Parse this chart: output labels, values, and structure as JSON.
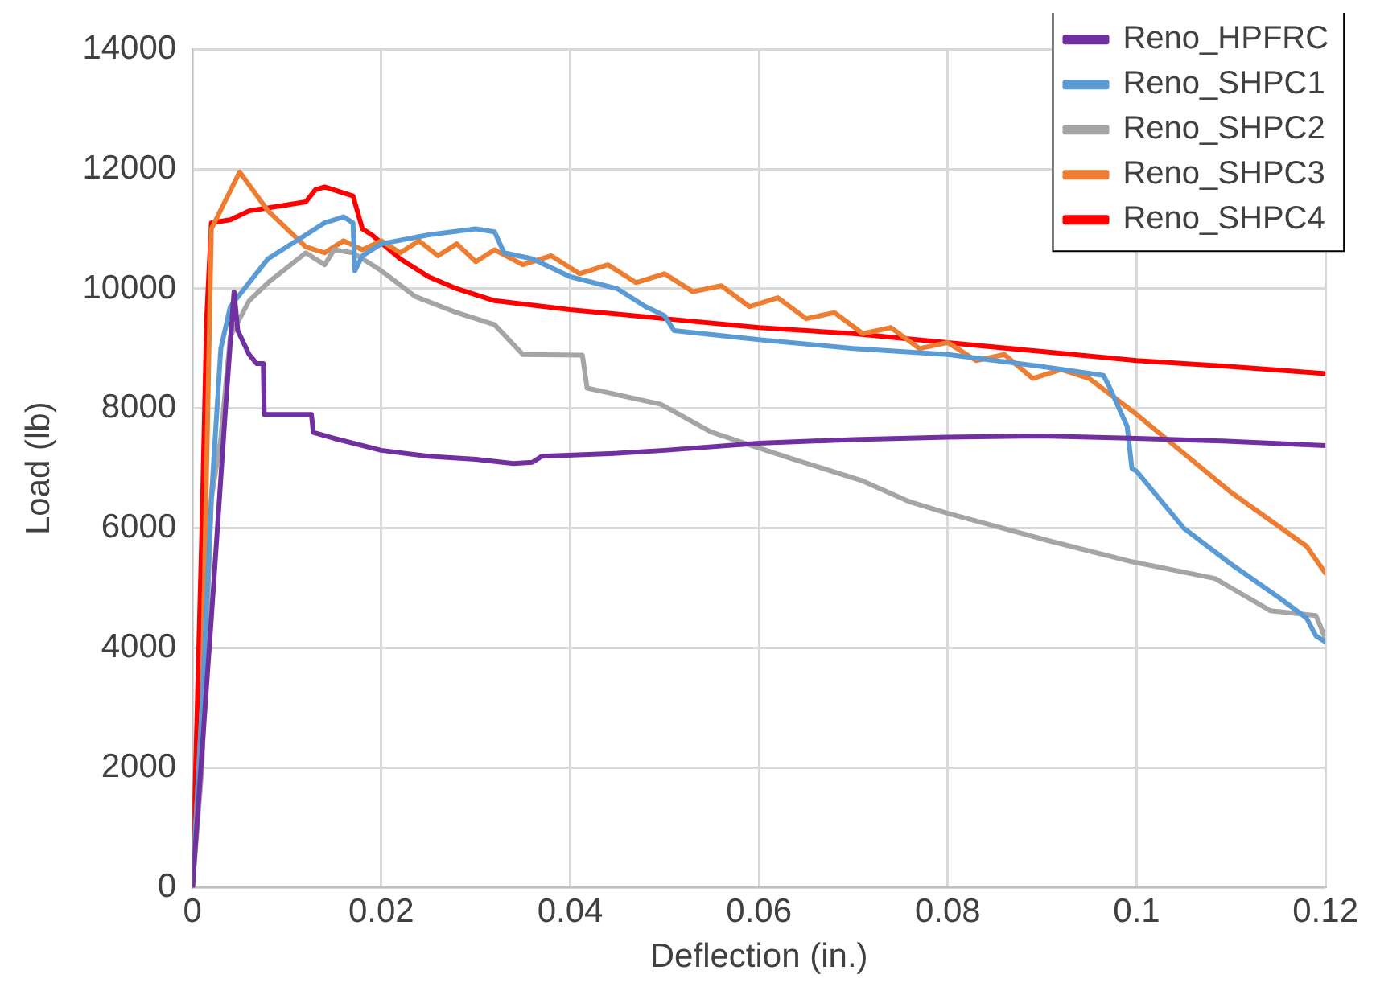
{
  "chart_data": {
    "type": "line",
    "xlabel": "Deflection (in.)",
    "ylabel": "Load (lb)",
    "xlim": [
      0,
      0.12
    ],
    "ylim": [
      0,
      14000
    ],
    "xticks": [
      0,
      0.02,
      0.04,
      0.06,
      0.08,
      0.1,
      0.12
    ],
    "yticks": [
      0,
      2000,
      4000,
      6000,
      8000,
      10000,
      12000,
      14000
    ],
    "grid": true,
    "legend": "top right",
    "marker": "none",
    "line_style": "solid",
    "series": [
      {
        "name": "Reno_HPFRC",
        "color": "#7030a0",
        "x": [
          0,
          0.002,
          0.0035,
          0.0044,
          0.0048,
          0.006,
          0.0068,
          0.0075,
          0.0076,
          0.0126,
          0.0128,
          0.015,
          0.02,
          0.025,
          0.03,
          0.034,
          0.036,
          0.037,
          0.045,
          0.05,
          0.06,
          0.07,
          0.08,
          0.09,
          0.1,
          0.11,
          0.12
        ],
        "values": [
          0,
          4500,
          8000,
          9950,
          9300,
          8900,
          8750,
          8750,
          7900,
          7900,
          7600,
          7500,
          7300,
          7200,
          7150,
          7080,
          7100,
          7200,
          7250,
          7300,
          7420,
          7480,
          7520,
          7540,
          7500,
          7450,
          7380
        ]
      },
      {
        "name": "Reno_SHPC1",
        "color": "#5b9bd5",
        "x": [
          0,
          0.001,
          0.002,
          0.003,
          0.004,
          0.006,
          0.008,
          0.01,
          0.012,
          0.014,
          0.016,
          0.017,
          0.0172,
          0.018,
          0.02,
          0.025,
          0.03,
          0.032,
          0.033,
          0.036,
          0.04,
          0.045,
          0.048,
          0.05,
          0.051,
          0.06,
          0.07,
          0.08,
          0.09,
          0.0965,
          0.097,
          0.099,
          0.0995,
          0.1,
          0.105,
          0.11,
          0.115,
          0.118,
          0.119,
          0.12
        ],
        "values": [
          0,
          3000,
          6500,
          9000,
          9700,
          10100,
          10500,
          10700,
          10900,
          11100,
          11200,
          11100,
          10300,
          10550,
          10750,
          10900,
          11000,
          10950,
          10600,
          10500,
          10200,
          10000,
          9700,
          9550,
          9300,
          9150,
          9000,
          8900,
          8700,
          8550,
          8400,
          7700,
          7000,
          6950,
          6000,
          5400,
          4850,
          4500,
          4200,
          4100
        ]
      },
      {
        "name": "Reno_SHPC2",
        "color": "#a5a5a5",
        "x": [
          0,
          0.001,
          0.002,
          0.003,
          0.004,
          0.006,
          0.008,
          0.01,
          0.012,
          0.014,
          0.015,
          0.017,
          0.02,
          0.0236,
          0.028,
          0.032,
          0.035,
          0.0413,
          0.0418,
          0.0496,
          0.0549,
          0.059,
          0.0637,
          0.0708,
          0.076,
          0.08,
          0.0907,
          0.0995,
          0.1083,
          0.1142,
          0.119,
          0.12
        ],
        "values": [
          0,
          2000,
          6500,
          7500,
          9200,
          9800,
          10100,
          10350,
          10600,
          10400,
          10650,
          10600,
          10300,
          9870,
          9600,
          9400,
          8900,
          8890,
          8340,
          8070,
          7610,
          7390,
          7150,
          6800,
          6440,
          6250,
          5790,
          5440,
          5160,
          4620,
          4540,
          4160
        ]
      },
      {
        "name": "Reno_SHPC3",
        "color": "#ed7d31",
        "x": [
          0,
          0.001,
          0.002,
          0.005,
          0.008,
          0.012,
          0.014,
          0.016,
          0.018,
          0.02,
          0.022,
          0.024,
          0.026,
          0.028,
          0.03,
          0.032,
          0.035,
          0.038,
          0.041,
          0.044,
          0.047,
          0.05,
          0.053,
          0.056,
          0.059,
          0.062,
          0.065,
          0.068,
          0.071,
          0.074,
          0.077,
          0.08,
          0.083,
          0.086,
          0.089,
          0.092,
          0.095,
          0.1,
          0.11,
          0.118,
          0.12
        ],
        "values": [
          0,
          3000,
          11000,
          11950,
          11300,
          10700,
          10600,
          10800,
          10650,
          10800,
          10600,
          10800,
          10550,
          10750,
          10450,
          10650,
          10400,
          10550,
          10250,
          10400,
          10100,
          10250,
          9950,
          10050,
          9700,
          9850,
          9500,
          9600,
          9250,
          9350,
          9000,
          9100,
          8800,
          8900,
          8500,
          8650,
          8500,
          7900,
          6600,
          5700,
          5250
        ]
      },
      {
        "name": "Reno_SHPC4",
        "color": "#ff0000",
        "x": [
          0,
          0.0005,
          0.001,
          0.0015,
          0.002,
          0.004,
          0.006,
          0.01,
          0.012,
          0.013,
          0.014,
          0.016,
          0.017,
          0.018,
          0.019,
          0.022,
          0.025,
          0.028,
          0.032,
          0.04,
          0.05,
          0.06,
          0.07,
          0.08,
          0.09,
          0.1,
          0.11,
          0.12
        ],
        "values": [
          0,
          3000,
          6000,
          9500,
          11100,
          11150,
          11300,
          11400,
          11450,
          11650,
          11700,
          11600,
          11550,
          11000,
          10900,
          10500,
          10200,
          10000,
          9800,
          9650,
          9500,
          9350,
          9250,
          9100,
          8950,
          8800,
          8700,
          8580
        ]
      }
    ]
  }
}
